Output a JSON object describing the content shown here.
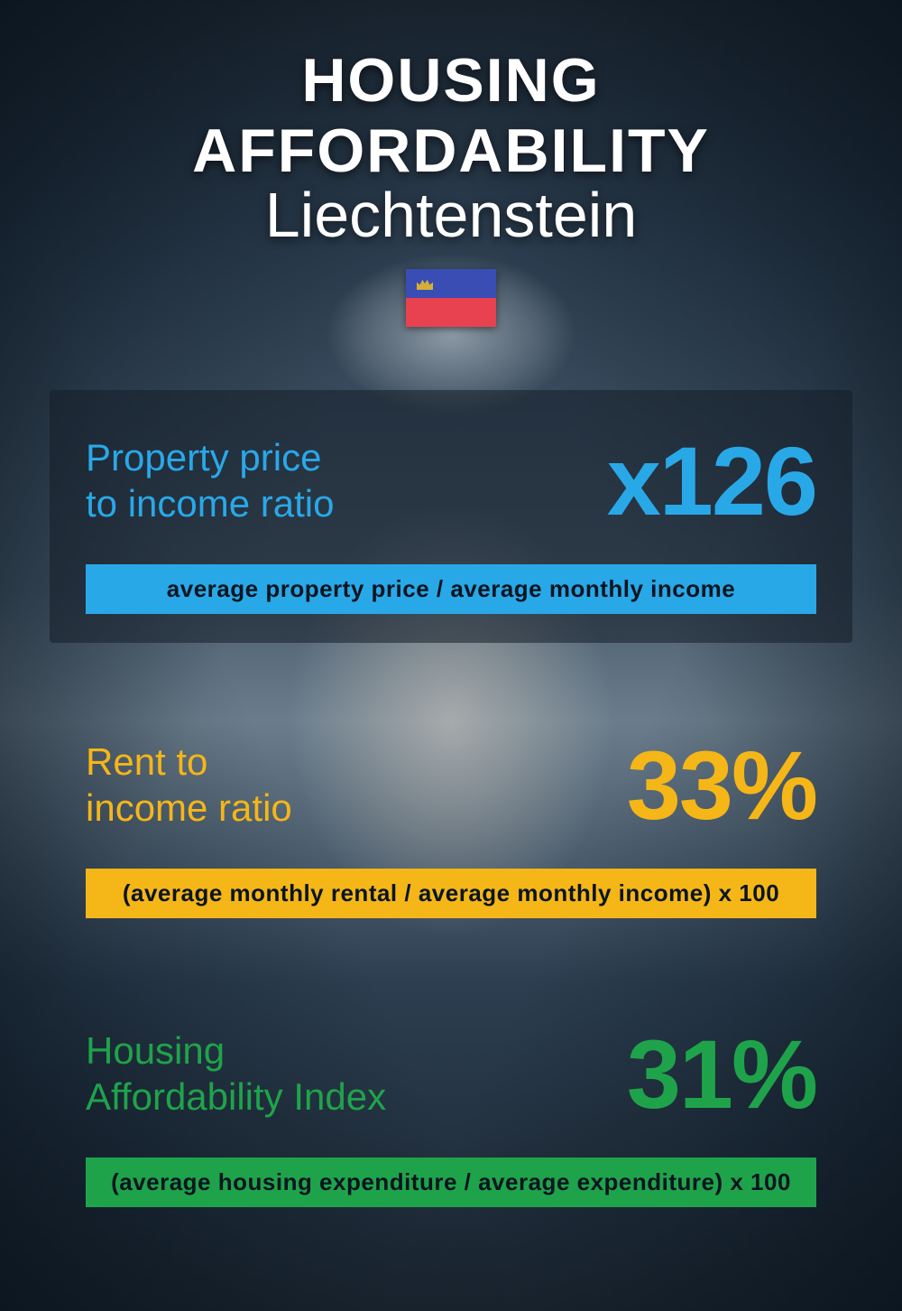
{
  "header": {
    "title": "HOUSING AFFORDABILITY",
    "subtitle": "Liechtenstein",
    "flag": {
      "top_color": "#3a4db5",
      "bottom_color": "#e8414f",
      "crown_color": "#d4af37"
    }
  },
  "metrics": [
    {
      "label": "Property price\nto income ratio",
      "value": "x126",
      "formula": "average property price / average monthly income",
      "color": "#29a8e8"
    },
    {
      "label": "Rent to\nincome ratio",
      "value": "33%",
      "formula": "(average monthly rental / average monthly income) x 100",
      "color": "#f5b618"
    },
    {
      "label": "Housing\nAffordability Index",
      "value": "31%",
      "formula": "(average housing expenditure / average expenditure) x 100",
      "color": "#1fa34a"
    }
  ]
}
